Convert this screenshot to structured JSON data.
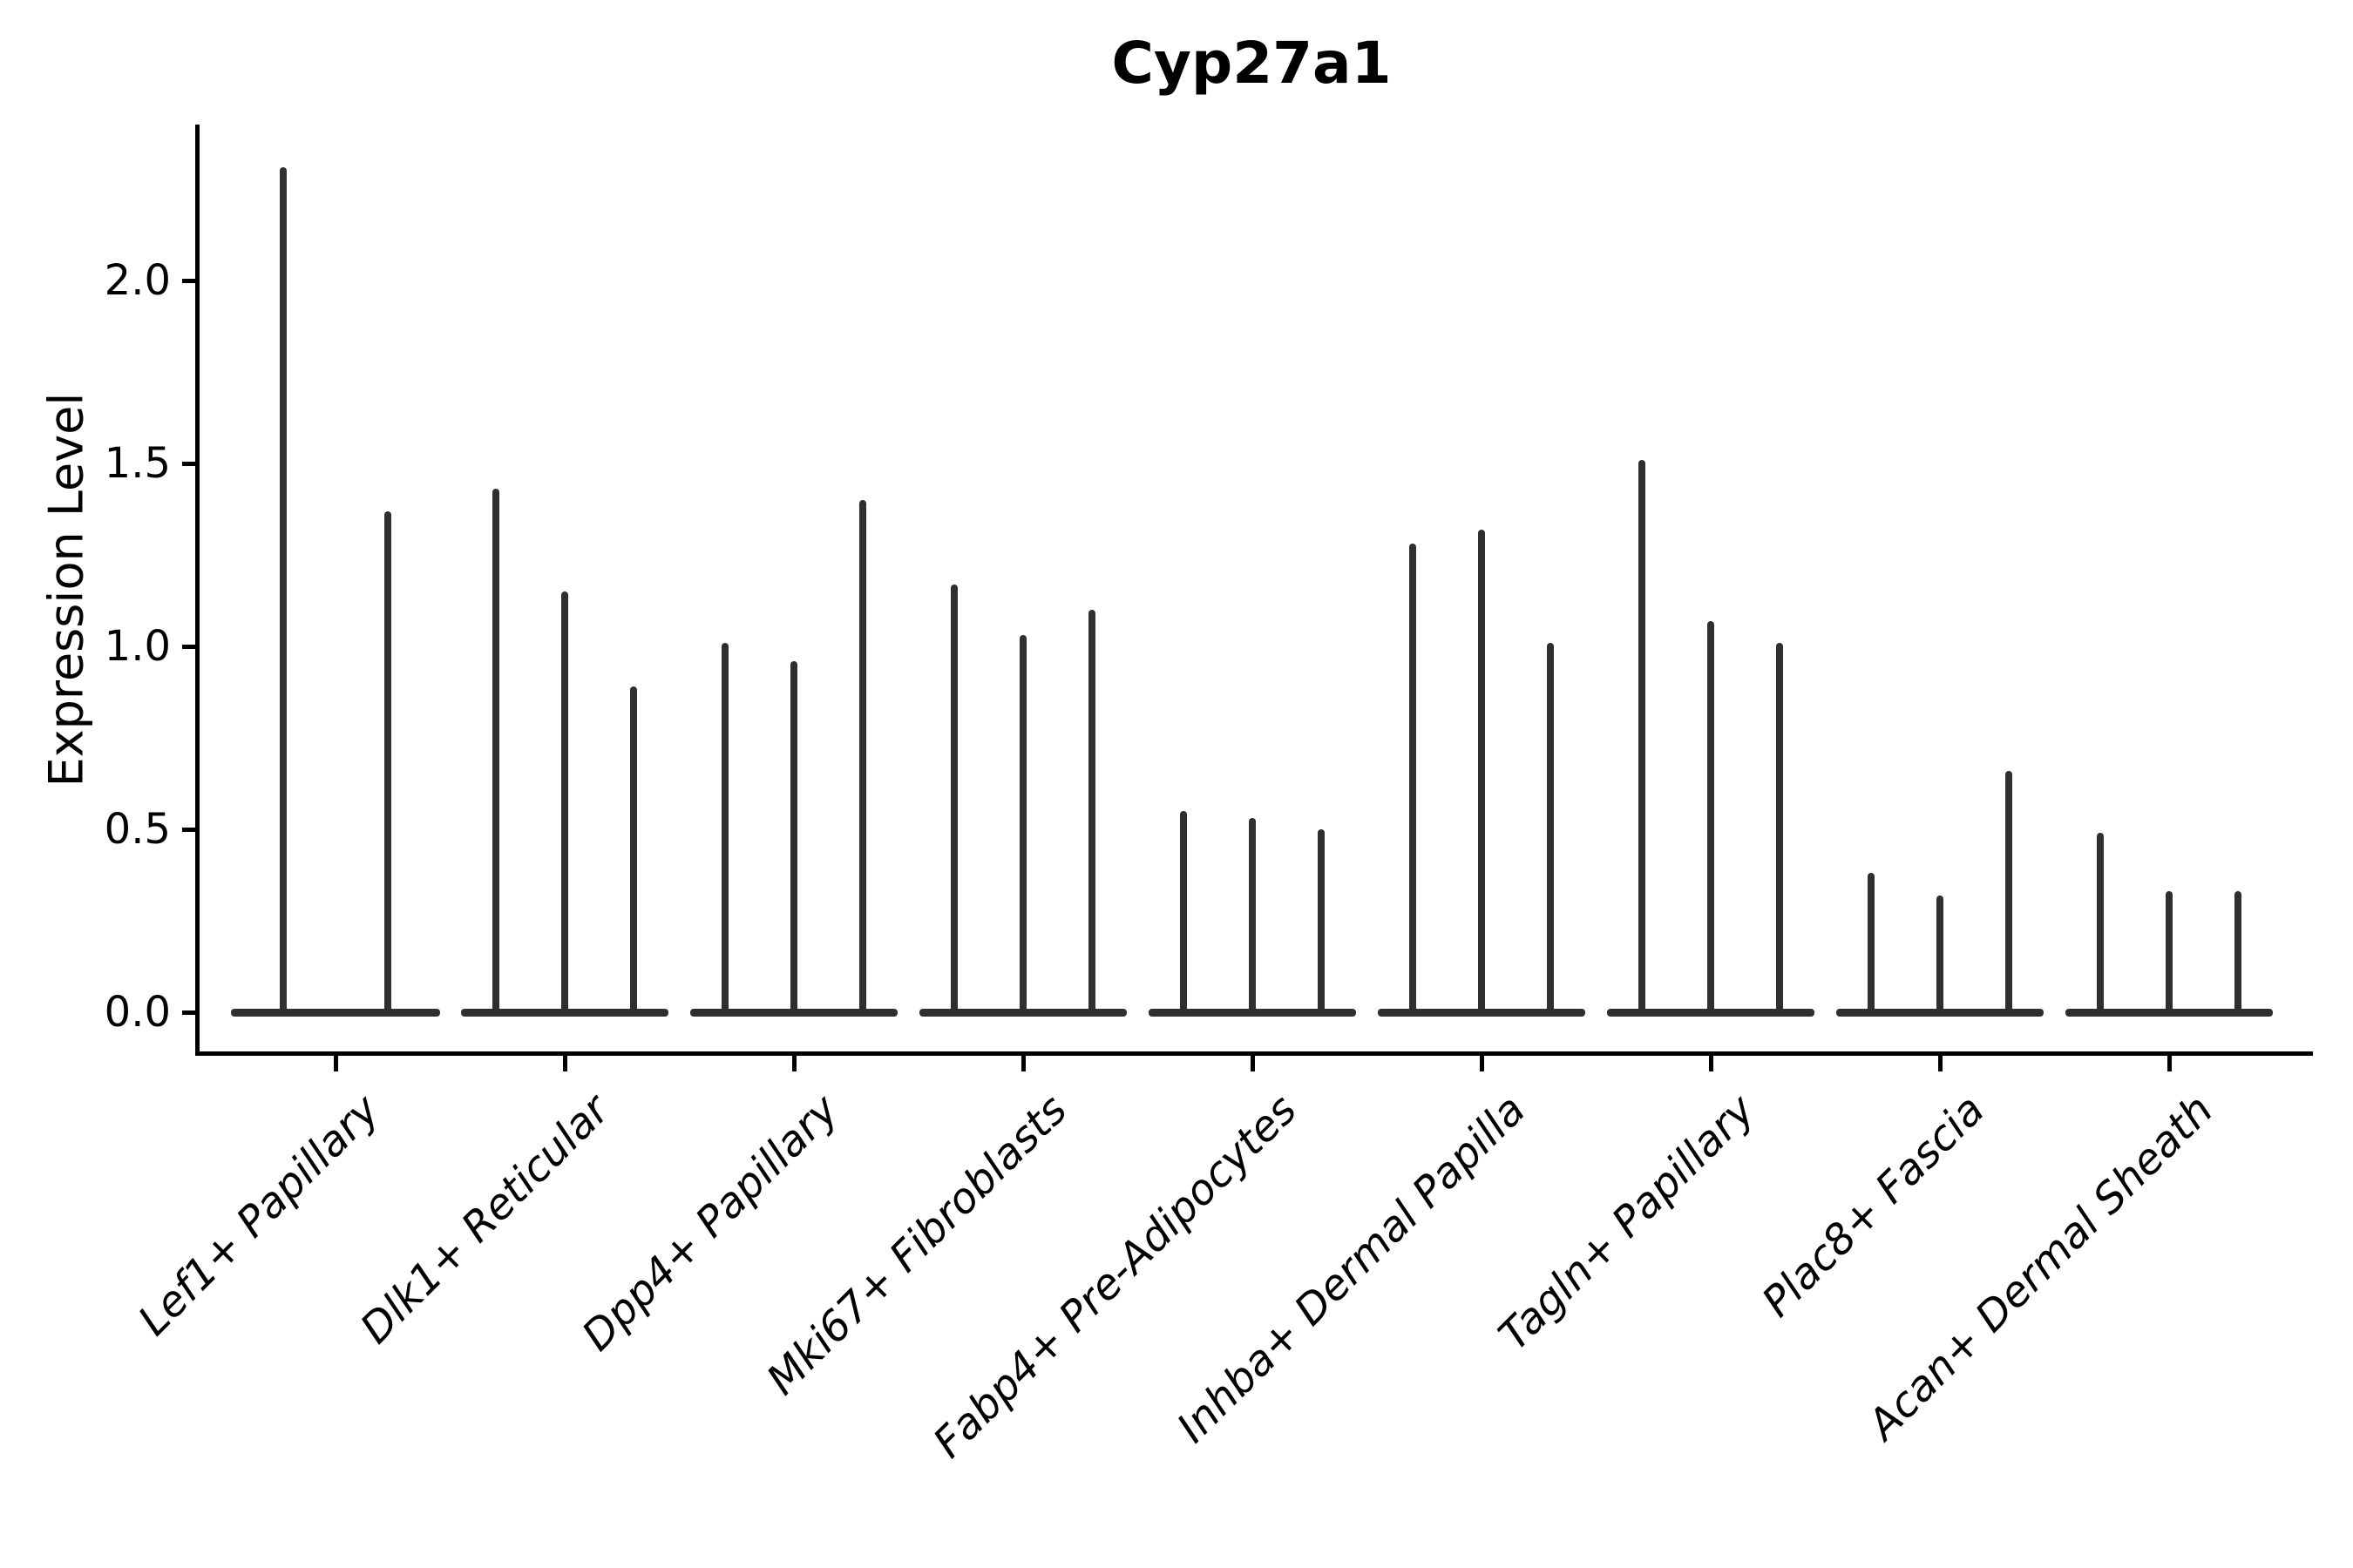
{
  "title": "Cyp27a1",
  "y_axis": {
    "label": "Expression Level",
    "ticks": [
      "0.0",
      "0.5",
      "1.0",
      "1.5",
      "2.0"
    ]
  },
  "colors": {
    "violin": "#2f2f2f",
    "axis": "#000000",
    "background": "#ffffff"
  },
  "chart_data": {
    "type": "violin",
    "title": "Cyp27a1",
    "xlabel": "",
    "ylabel": "Expression Level",
    "ylim": [
      0,
      2.4
    ],
    "yticks": [
      0,
      0.5,
      1,
      1.5,
      2
    ],
    "grid": false,
    "legend": "none",
    "xtick_rotation": 45,
    "xtick_style": "italic",
    "description": "Very narrow stacked-violin style plot; each category shows 2-3 needle-thin violins (one per sample) rising from a flat base at expression 0; violin_peaks = maximum expression level of each violin",
    "categories": [
      "Lef1+ Papillary",
      "Dlk1+ Reticular",
      "Dpp4+ Papillary",
      "Mki67+ Fibroblasts",
      "Fabp4+ Pre-Adipocytes",
      "Inhba+ Dermal Papilla",
      "Tagln+ Papillary",
      "Plac8+ Fascia",
      "Acan+ Dermal Sheath"
    ],
    "groups": [
      {
        "category": "Lef1+ Papillary",
        "violin_peaks": [
          2.31,
          1.37
        ]
      },
      {
        "category": "Dlk1+ Reticular",
        "violin_peaks": [
          1.43,
          1.15,
          0.89
        ]
      },
      {
        "category": "Dpp4+ Papillary",
        "violin_peaks": [
          1.01,
          0.96,
          1.4
        ]
      },
      {
        "category": "Mki67+ Fibroblasts",
        "violin_peaks": [
          1.17,
          1.03,
          1.1
        ]
      },
      {
        "category": "Fabp4+ Pre-Adipocytes",
        "violin_peaks": [
          0.55,
          0.53,
          0.5
        ]
      },
      {
        "category": "Inhba+ Dermal Papilla",
        "violin_peaks": [
          1.28,
          1.32,
          1.01
        ]
      },
      {
        "category": "Tagln+ Papillary",
        "violin_peaks": [
          1.51,
          1.07,
          1.01
        ]
      },
      {
        "category": "Plac8+ Fascia",
        "violin_peaks": [
          0.38,
          0.32,
          0.66
        ]
      },
      {
        "category": "Acan+ Dermal Sheath",
        "violin_peaks": [
          0.49,
          0.33,
          0.33
        ]
      }
    ]
  }
}
